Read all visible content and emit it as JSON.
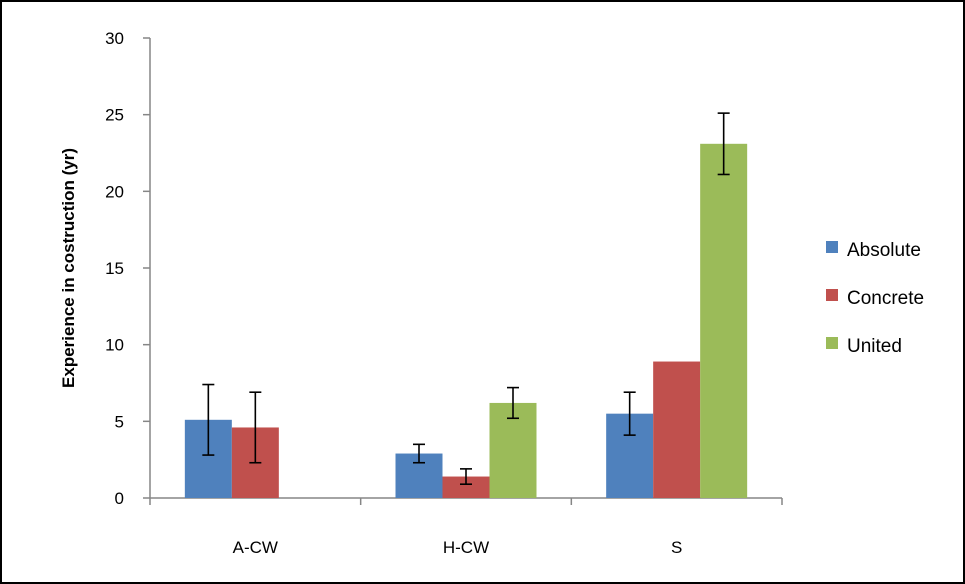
{
  "chart_data": {
    "type": "bar",
    "title": "",
    "xlabel": "",
    "ylabel": "Experience in costruction  (yr)",
    "ylim": [
      0,
      30
    ],
    "yticks": [
      "0",
      "5",
      "10",
      "15",
      "20",
      "25",
      "30"
    ],
    "categories": [
      "A-CW",
      "H-CW",
      "S"
    ],
    "series": [
      {
        "name": "Absolute",
        "color": "#4F81BD",
        "values": [
          5.1,
          2.9,
          5.5
        ],
        "errors": [
          2.3,
          0.6,
          1.4
        ]
      },
      {
        "name": "Concrete",
        "color": "#C0504D",
        "values": [
          4.6,
          1.4,
          8.9
        ],
        "errors": [
          2.3,
          0.5,
          null
        ]
      },
      {
        "name": "United",
        "color": "#9BBB59",
        "values": [
          null,
          6.2,
          23.1
        ],
        "errors": [
          null,
          1.0,
          2.0
        ]
      }
    ],
    "grid": false,
    "legend_position": "right"
  }
}
